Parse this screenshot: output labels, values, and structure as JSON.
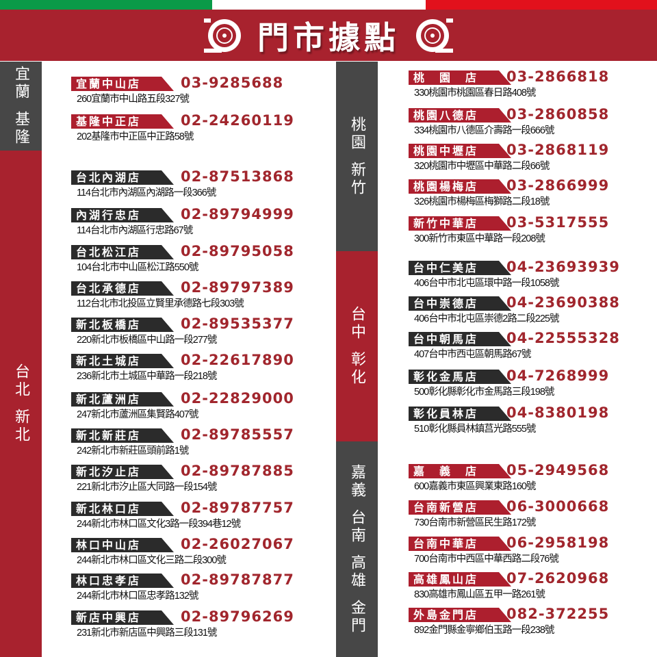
{
  "colors": {
    "green": "#0a9a48",
    "white": "#ffffff",
    "red_stripe": "#e2111c",
    "brand_red": "#a8222e",
    "dark": "#474747",
    "label_dark": "#2b2b2b",
    "label_red": "#ad1f2e",
    "phone": "#a1262d"
  },
  "header": {
    "title": "門市據點",
    "icon": "wheel-icon"
  },
  "regions": [
    {
      "name": [
        "宜蘭",
        "基隆"
      ],
      "color": "dark"
    },
    {
      "name": [
        "台北",
        "新北"
      ],
      "color": "red"
    },
    {
      "name": [
        "桃園",
        "新竹"
      ],
      "color": "dark"
    },
    {
      "name": [
        "台中",
        "彰化"
      ],
      "color": "red"
    },
    {
      "name": [
        "嘉義",
        "台南",
        "高雄",
        "金門"
      ],
      "color": "dark"
    }
  ],
  "left_stores": [
    {
      "name": "宜蘭中山店",
      "phone": "03-9285688",
      "address": "260宜蘭市中山路五段327號",
      "style": "red"
    },
    {
      "name": "基隆中正店",
      "phone": "02-24260119",
      "address": "202基隆市中正區中正路58號",
      "style": "red"
    },
    {
      "name": "台北內湖店",
      "phone": "02-87513868",
      "address": "114台北市內湖區內湖路一段366號",
      "style": "dark"
    },
    {
      "name": "內湖行忠店",
      "phone": "02-89794999",
      "address": "114台北市內湖區行忠路67號",
      "style": "dark"
    },
    {
      "name": "台北松江店",
      "phone": "02-89795058",
      "address": "104台北市中山區松江路550號",
      "style": "dark"
    },
    {
      "name": "台北承德店",
      "phone": "02-89797389",
      "address": "112台北市北投區立賢里承德路七段303號",
      "style": "dark"
    },
    {
      "name": "新北板橋店",
      "phone": "02-89535377",
      "address": "220新北市板橋區中山路一段277號",
      "style": "dark"
    },
    {
      "name": "新北土城店",
      "phone": "02-22617890",
      "address": "236新北市土城區中華路一段218號",
      "style": "dark"
    },
    {
      "name": "新北蘆洲店",
      "phone": "02-22829000",
      "address": "247新北市蘆洲區集賢路407號",
      "style": "dark"
    },
    {
      "name": "新北新莊店",
      "phone": "02-89785557",
      "address": "242新北市新莊區頭前路1號",
      "style": "dark"
    },
    {
      "name": "新北汐止店",
      "phone": "02-89787885",
      "address": "221新北市汐止區大同路一段154號",
      "style": "dark"
    },
    {
      "name": "新北林口店",
      "phone": "02-89787757",
      "address": "244新北市林口區文化3路一段394巷12號",
      "style": "dark"
    },
    {
      "name": "林口中山店",
      "phone": "02-26027067",
      "address": "244新北市林口區文化三路二段300號",
      "style": "dark"
    },
    {
      "name": "林口忠孝店",
      "phone": "02-89787877",
      "address": "244新北市林口區忠孝路132號",
      "style": "dark"
    },
    {
      "name": "新店中興店",
      "phone": "02-89796269",
      "address": "231新北市新店區中興路三段131號",
      "style": "dark"
    }
  ],
  "right_stores": [
    {
      "name": "桃　園　店",
      "phone": "03-2866818",
      "address": "330桃園市桃園區春日路408號",
      "style": "red"
    },
    {
      "name": "桃園八德店",
      "phone": "03-2860858",
      "address": "334桃園市八德區介壽路一段666號",
      "style": "red"
    },
    {
      "name": "桃園中壢店",
      "phone": "03-2868119",
      "address": "320桃園市中壢區中華路二段66號",
      "style": "red"
    },
    {
      "name": "桃園楊梅店",
      "phone": "03-2866999",
      "address": "326桃園市楊梅區梅獅路二段18號",
      "style": "red"
    },
    {
      "name": "新竹中華店",
      "phone": "03-5317555",
      "address": "300新竹市東區中華路一段208號",
      "style": "red"
    },
    {
      "name": "台中仁美店",
      "phone": "04-23693939",
      "address": "406台中市北屯區環中路一段1058號",
      "style": "dark"
    },
    {
      "name": "台中崇德店",
      "phone": "04-23690388",
      "address": "406台中市北屯區崇德2路二段225號",
      "style": "dark"
    },
    {
      "name": "台中朝馬店",
      "phone": "04-22555328",
      "address": "407台中市西屯區朝馬路67號",
      "style": "dark"
    },
    {
      "name": "彰化金馬店",
      "phone": "04-7268999",
      "address": "500彰化縣彰化市金馬路三段198號",
      "style": "dark"
    },
    {
      "name": "彰化員林店",
      "phone": "04-8380198",
      "address": "510彰化縣員林鎮莒光路555號",
      "style": "dark"
    },
    {
      "name": "嘉　義　店",
      "phone": "05-2949568",
      "address": "600嘉義市東區興業東路160號",
      "style": "red"
    },
    {
      "name": "台南新營店",
      "phone": "06-3000668",
      "address": "730台南市新營區民生路172號",
      "style": "red"
    },
    {
      "name": "台南中華店",
      "phone": "06-2958198",
      "address": "700台南市中西區中華西路二段76號",
      "style": "red"
    },
    {
      "name": "高雄鳳山店",
      "phone": "07-2620968",
      "address": "830高雄市鳳山區五甲一路261號",
      "style": "red"
    },
    {
      "name": "外島金門店",
      "phone": "082-372255",
      "address": "892金門縣金寧鄉伯玉路一段238號",
      "style": "red"
    }
  ]
}
